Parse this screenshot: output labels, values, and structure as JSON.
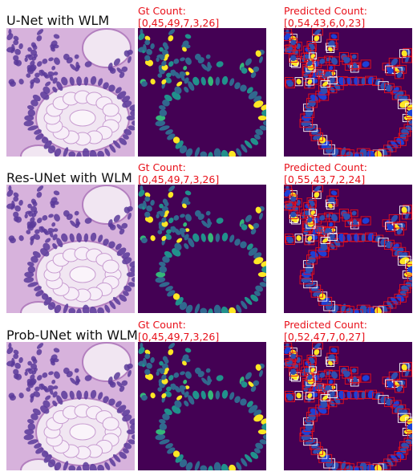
{
  "rows": [
    {
      "model": "U-Net with WLM",
      "gt_label": "Gt Count:",
      "gt_value": "[0,45,49,7,3,26]",
      "pred_label": "Predicted Count:",
      "pred_value": "[0,54,43,6,0,23]"
    },
    {
      "model": "Res-UNet with WLM",
      "gt_label": "Gt Count:",
      "gt_value": "[0,45,49,7,3,26]",
      "pred_label": "Predicted Count:",
      "pred_value": "[0,55,43,7,2,24]"
    },
    {
      "model": "Prob-UNet with WLM",
      "gt_label": "Gt Count:",
      "gt_value": "[0,45,49,7,3,26]",
      "pred_label": "Predicted Count:",
      "pred_value": "[0,52,47,7,0,27]"
    }
  ],
  "colors": {
    "caption": "#e8101a",
    "mask_background": "#440154",
    "mask_class_a": "#31688e",
    "mask_class_b": "#21918c",
    "mask_class_c": "#35b779",
    "mask_class_d": "#fde725",
    "histology_background": "#d7b2dc",
    "nucleus": "#5a3a9a",
    "box_red": "#e8101a",
    "box_white": "#ffffff"
  }
}
